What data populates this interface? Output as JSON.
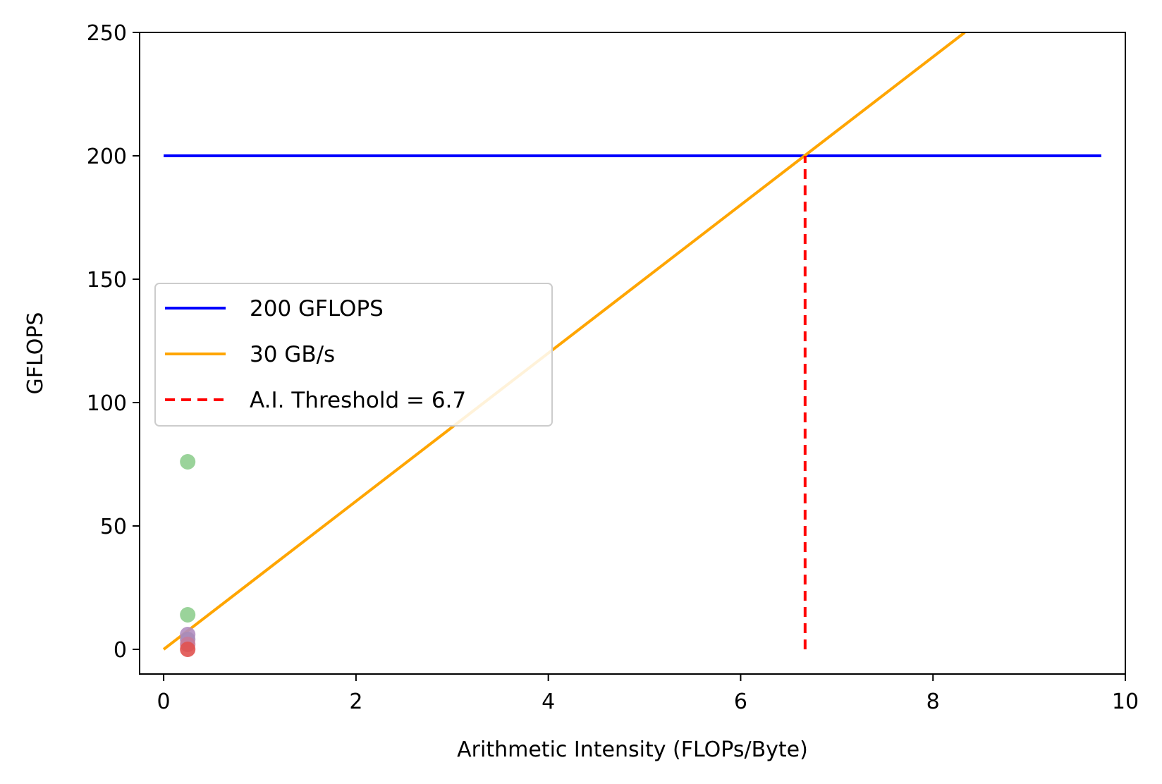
{
  "chart_data": {
    "type": "line",
    "title": "",
    "xlabel": "Arithmetic Intensity (FLOPs/Byte)",
    "ylabel": "GFLOPS",
    "xlim": [
      -0.25,
      10
    ],
    "ylim": [
      -10,
      250
    ],
    "xticks": [
      0,
      2,
      4,
      6,
      8,
      10
    ],
    "yticks": [
      0,
      50,
      100,
      150,
      200,
      250
    ],
    "xtick_labels": [
      "0",
      "2",
      "4",
      "6",
      "8",
      "10"
    ],
    "ytick_labels": [
      "0",
      "50",
      "100",
      "150",
      "200",
      "250"
    ],
    "grid": false,
    "legend_position": "center-left",
    "series": [
      {
        "name": "200 GFLOPS",
        "kind": "line",
        "style": "solid",
        "color": "#0000ff",
        "x": [
          0,
          9.75
        ],
        "y": [
          200,
          200
        ]
      },
      {
        "name": "30 GB/s",
        "kind": "line",
        "style": "solid",
        "color": "#ffa500",
        "x": [
          0,
          8.33
        ],
        "y": [
          0,
          250
        ]
      },
      {
        "name": "A.I. Threshold = 6.7",
        "kind": "line",
        "style": "dashed",
        "color": "#ff0000",
        "x": [
          6.67,
          6.67
        ],
        "y": [
          0,
          200
        ]
      }
    ],
    "points": [
      {
        "x": 0.25,
        "y": 76,
        "color": "#8fce8f"
      },
      {
        "x": 0.25,
        "y": 14,
        "color": "#8fce8f"
      },
      {
        "x": 0.25,
        "y": 6,
        "color": "#b38fc2"
      },
      {
        "x": 0.25,
        "y": 4,
        "color": "#a98cb8"
      },
      {
        "x": 0.25,
        "y": 2,
        "color": "#c87b9a"
      },
      {
        "x": 0.25,
        "y": 0,
        "color": "#e0524f"
      }
    ]
  }
}
